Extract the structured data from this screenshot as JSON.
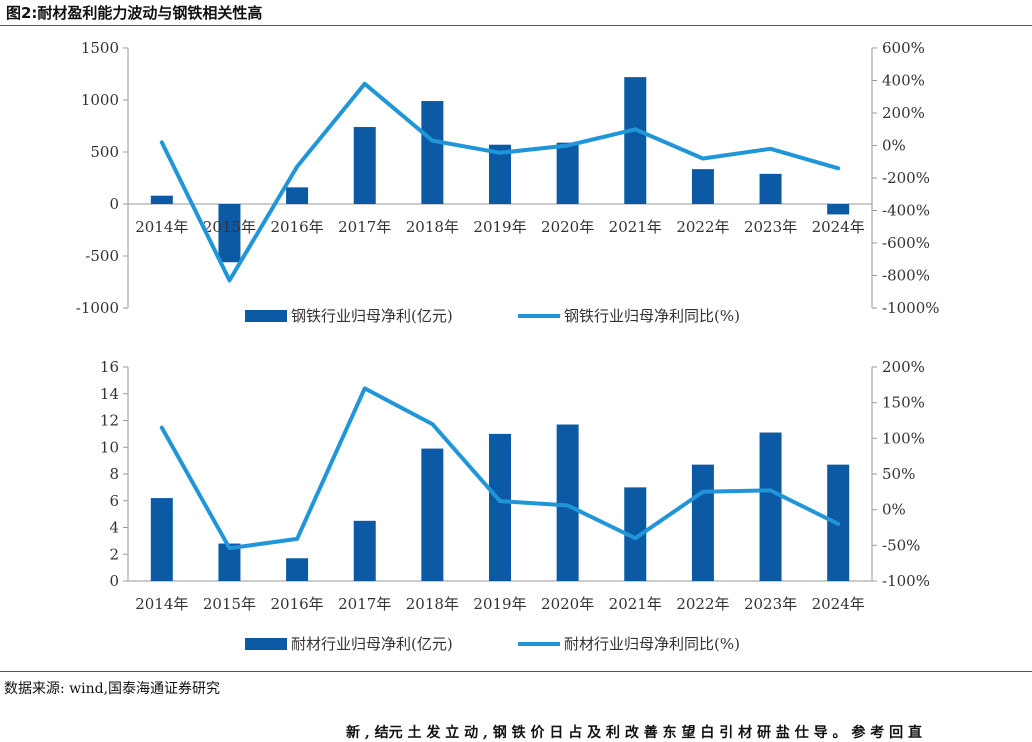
{
  "header": {
    "title": "图2:耐材盈利能力波动与钢铁相关性高"
  },
  "source": "数据来源: wind,国泰海通证券研究",
  "footer_text": "新 , 结元 土 发 立 动 , 钢 铁 价 日 占 及 利 改 善 东 望 白 引 材 研 盐 仕 导 。 参 考 回 直",
  "colors": {
    "bar": "#0b5aa3",
    "line": "#2096d8"
  },
  "chart_data": [
    {
      "type": "bar",
      "categories": [
        "2014年",
        "2015年",
        "2016年",
        "2017年",
        "2018年",
        "2019年",
        "2020年",
        "2021年",
        "2022年",
        "2023年",
        "2024年"
      ],
      "series": [
        {
          "name": "钢铁行业归母净利(亿元)",
          "type": "bar",
          "axis": "left",
          "values": [
            80,
            -560,
            160,
            740,
            990,
            570,
            590,
            1220,
            335,
            290,
            -100
          ]
        },
        {
          "name": "钢铁行业归母净利同比(%)",
          "type": "line",
          "axis": "right",
          "values": [
            20,
            -830,
            -130,
            380,
            30,
            -45,
            0,
            100,
            -80,
            -20,
            -140
          ]
        }
      ],
      "ylim_left": [
        -1000,
        1500
      ],
      "yticks_left": [
        "1500",
        "1000",
        "500",
        "0",
        "-500",
        "-1000"
      ],
      "ylim_right": [
        -1000,
        600
      ],
      "yticks_right": [
        "600%",
        "400%",
        "200%",
        "0%",
        "-200%",
        "-400%",
        "-600%",
        "-800%",
        "-1000%"
      ],
      "grid": false,
      "legend": "bottom"
    },
    {
      "type": "bar",
      "categories": [
        "2014年",
        "2015年",
        "2016年",
        "2017年",
        "2018年",
        "2019年",
        "2020年",
        "2021年",
        "2022年",
        "2023年",
        "2024年"
      ],
      "series": [
        {
          "name": "耐材行业归母净利(亿元)",
          "type": "bar",
          "axis": "left",
          "values": [
            6.2,
            2.8,
            1.7,
            4.5,
            9.9,
            11.0,
            11.7,
            7.0,
            8.7,
            11.1,
            8.7
          ]
        },
        {
          "name": "耐材行业归母净利同比(%)",
          "type": "line",
          "axis": "right",
          "values": [
            115,
            -54,
            -41,
            170,
            120,
            12,
            6,
            -40,
            25,
            27,
            -20
          ]
        }
      ],
      "ylim_left": [
        0,
        16
      ],
      "yticks_left": [
        "16",
        "14",
        "12",
        "10",
        "8",
        "6",
        "4",
        "2",
        "0"
      ],
      "ylim_right": [
        -100,
        200
      ],
      "yticks_right": [
        "200%",
        "150%",
        "100%",
        "50%",
        "0%",
        "-50%",
        "-100%"
      ],
      "grid": false,
      "legend": "bottom"
    }
  ]
}
